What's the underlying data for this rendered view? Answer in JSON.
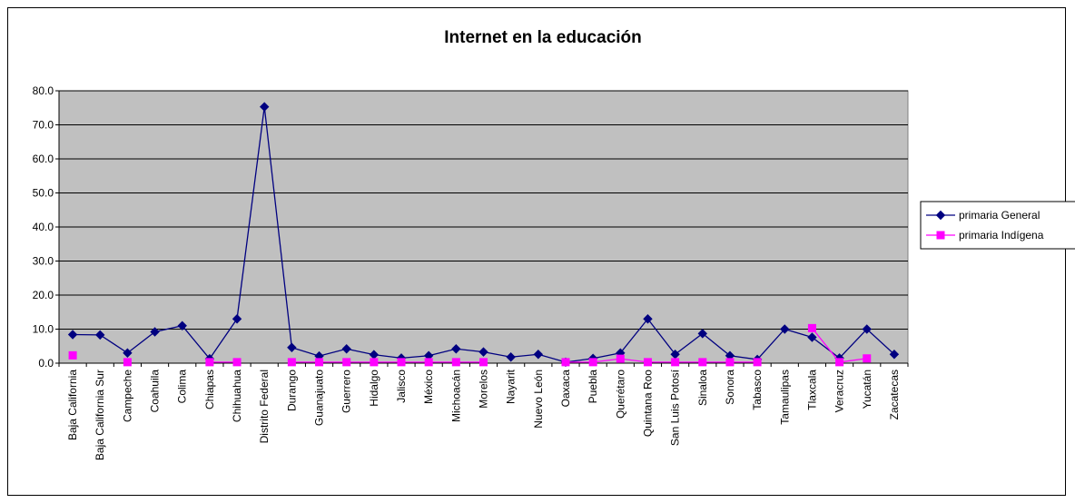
{
  "chart_data": {
    "type": "line",
    "title": "Internet en la educación",
    "xlabel": "",
    "ylabel": "",
    "ylim": [
      0,
      80
    ],
    "yticks": [
      "0.0",
      "10.0",
      "20.0",
      "30.0",
      "40.0",
      "50.0",
      "60.0",
      "70.0",
      "80.0"
    ],
    "grid": true,
    "legend_position": "right",
    "plot_background": "#c0c0c0",
    "categories": [
      "Baja California",
      "Baja California Sur",
      "Campeche",
      "Coahuila",
      "Colima",
      "Chiapas",
      "Chihuahua",
      "Distrito Federal",
      "Durango",
      "Guanajuato",
      "Guerrero",
      "Hidalgo",
      "Jalisco",
      "México",
      "Michoacán",
      "Morelos",
      "Nayarit",
      "Nuevo León",
      "Oaxaca",
      "Puebla",
      "Querétaro",
      "Quintana Roo",
      "San Luis Potosí",
      "Sinaloa",
      "Sonora",
      "Tabasco",
      "Tamaulipas",
      "Tlaxcala",
      "Veracruz",
      "Yucatán",
      "Zacatecas"
    ],
    "series": [
      {
        "name": "primaria General",
        "color": "#000080",
        "marker": "diamond",
        "values": [
          8.4,
          8.3,
          3.0,
          9.2,
          11.0,
          1.3,
          13.0,
          75.3,
          4.6,
          2.1,
          4.2,
          2.5,
          1.5,
          2.2,
          4.2,
          3.3,
          1.8,
          2.6,
          0.3,
          1.4,
          3.0,
          13.0,
          2.6,
          8.7,
          2.2,
          1.1,
          10.0,
          7.6,
          1.5,
          10.0,
          2.6
        ]
      },
      {
        "name": "primaria Indígena",
        "color": "#ff00ff",
        "marker": "square",
        "values": [
          2.3,
          null,
          0.3,
          null,
          null,
          0.3,
          0.3,
          null,
          0.3,
          0.3,
          0.3,
          0.3,
          0.3,
          0.3,
          0.3,
          0.3,
          null,
          null,
          0.3,
          0.3,
          1.3,
          0.3,
          0.3,
          0.3,
          0.3,
          0.3,
          null,
          10.3,
          0.3,
          1.4,
          null
        ]
      }
    ]
  }
}
